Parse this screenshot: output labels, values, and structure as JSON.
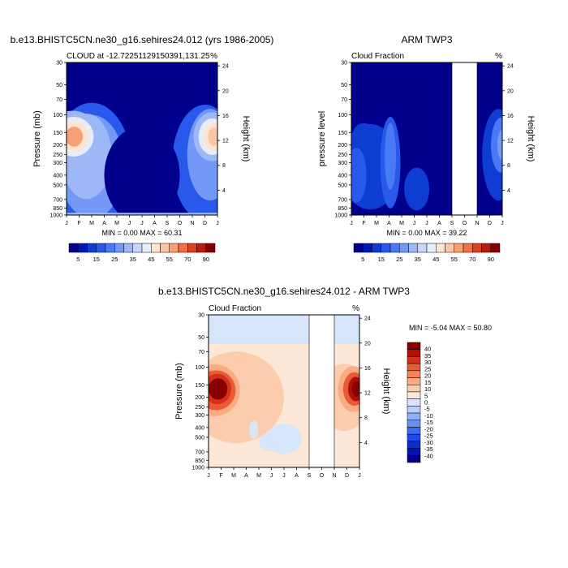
{
  "chart_data": [
    {
      "type": "heatmap",
      "title": "b.e13.BHISTC5CN.ne30_g16.sehires24.012 (yrs 1986-2005)",
      "subtitle_left": "CLOUD at -12.72251129150391,131.25",
      "subtitle_right": "%",
      "ylabel": "Pressure (mb)",
      "ylabel_right": "Height (km)",
      "x_ticks": [
        "J",
        "F",
        "M",
        "A",
        "M",
        "J",
        "J",
        "A",
        "S",
        "O",
        "N",
        "D",
        "J"
      ],
      "y_ticks": [
        "30",
        "50",
        "70",
        "100",
        "150",
        "200",
        "250",
        "300",
        "400",
        "500",
        "700",
        "850",
        "1000"
      ],
      "height_ticks": [
        "24",
        "20",
        "16",
        "12",
        "8",
        "4"
      ],
      "stats": "MIN =   0.00 MAX =  60.31",
      "colorbar_labels": [
        "5",
        "15",
        "25",
        "35",
        "45",
        "55",
        "70",
        "90"
      ],
      "features": [
        {
          "month": 0.7,
          "pressure": 165,
          "value": 58
        },
        {
          "month": 11.5,
          "pressure": 165,
          "value": 52
        },
        {
          "month": 1.5,
          "pressure": 400,
          "value": 25
        },
        {
          "month": 6.0,
          "pressure": 300,
          "value": 2
        }
      ]
    },
    {
      "type": "heatmap",
      "title": "ARM TWP3",
      "subtitle_left": "Cloud Fraction",
      "subtitle_right": "%",
      "ylabel": "pressure level",
      "ylabel_right": "Height (km)",
      "x_ticks": [
        "J",
        "F",
        "M",
        "A",
        "M",
        "J",
        "J",
        "A",
        "S",
        "O",
        "N",
        "D",
        "J"
      ],
      "y_ticks": [
        "30",
        "50",
        "70",
        "100",
        "150",
        "200",
        "250",
        "300",
        "400",
        "500",
        "700",
        "850",
        "1000"
      ],
      "height_ticks": [
        "24",
        "20",
        "16",
        "12",
        "8",
        "4"
      ],
      "stats": "MIN =   0.00 MAX =  39.22",
      "colorbar_labels": [
        "5",
        "15",
        "25",
        "35",
        "45",
        "55",
        "70",
        "90"
      ],
      "missing_months": [
        8,
        10
      ],
      "features": [
        {
          "month": 3.0,
          "pressure": 250,
          "value": 22
        },
        {
          "month": 11.5,
          "pressure": 200,
          "value": 28
        }
      ]
    },
    {
      "type": "heatmap",
      "title": "b.e13.BHISTC5CN.ne30_g16.sehires24.012 - ARM TWP3",
      "subtitle_left": "Cloud Fraction",
      "subtitle_right": "%",
      "ylabel": "Pressure (mb)",
      "ylabel_right": "Height (km)",
      "x_ticks": [
        "J",
        "F",
        "M",
        "A",
        "M",
        "J",
        "J",
        "A",
        "S",
        "O",
        "N",
        "D",
        "J"
      ],
      "y_ticks": [
        "30",
        "50",
        "70",
        "100",
        "150",
        "200",
        "250",
        "300",
        "400",
        "500",
        "700",
        "850",
        "1000"
      ],
      "height_ticks": [
        "24",
        "20",
        "16",
        "12",
        "8",
        "4"
      ],
      "stats": "MIN =  -5.04 MAX =  50.80",
      "colorbar_labels": [
        "40",
        "35",
        "30",
        "25",
        "20",
        "15",
        "10",
        "5",
        "0",
        "-5",
        "-10",
        "-15",
        "-20",
        "-25",
        "-30",
        "-35",
        "-40"
      ],
      "missing_months": [
        8,
        10
      ],
      "features": [
        {
          "month": 0.8,
          "pressure": 165,
          "value": 45
        },
        {
          "month": 11.5,
          "pressure": 165,
          "value": 42
        }
      ]
    }
  ],
  "colors": {
    "seq": [
      "#00008c",
      "#0017b4",
      "#0f3cd2",
      "#2859eb",
      "#4a79f5",
      "#7498f5",
      "#9eb8f7",
      "#c7d6fb",
      "#e6eefc",
      "#fde5d3",
      "#fcc6a5",
      "#f8a073",
      "#f07045",
      "#d9411f",
      "#b31d0a",
      "#830000"
    ],
    "div": [
      "#030087",
      "#0314b0",
      "#0a2dd0",
      "#1f4aea",
      "#3d6cf0",
      "#6690f2",
      "#90b0f5",
      "#b8cff9",
      "#d8e6fc",
      "#fde8d8",
      "#fcccae",
      "#f9ab82",
      "#f58458",
      "#ea5a34",
      "#d5301a",
      "#b01004",
      "#860000"
    ],
    "missing": "#ffffff"
  }
}
